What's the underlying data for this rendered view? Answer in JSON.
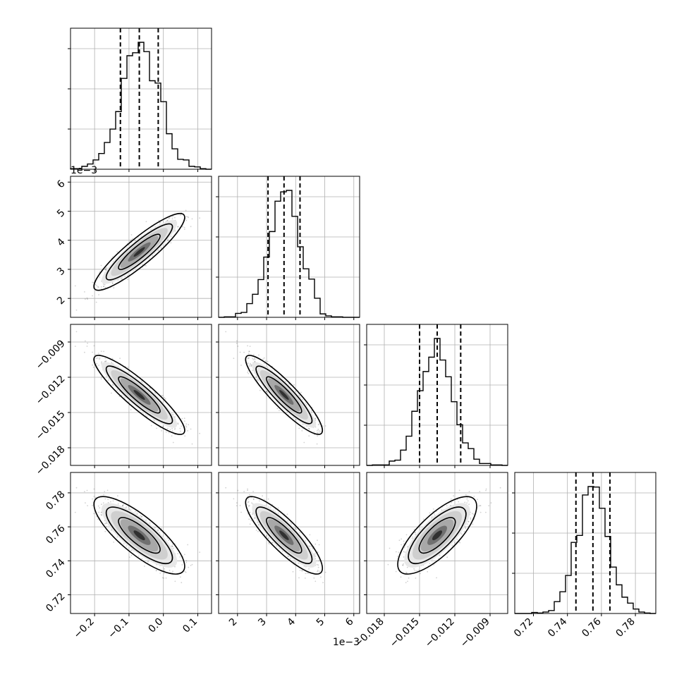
{
  "chart_data": {
    "type": "corner",
    "parameters": [
      {
        "range": [
          -0.27,
          0.14
        ],
        "ticks": [
          "−0.2",
          "−0.1",
          "0.0",
          "0.1"
        ],
        "tick_values": [
          -0.2,
          -0.1,
          0.0,
          0.1
        ],
        "mean": -0.07,
        "sigma": 0.055,
        "quantiles": [
          -0.125,
          -0.07,
          -0.015
        ],
        "offset_label": ""
      },
      {
        "range": [
          1.35,
          6.2
        ],
        "ticks": [
          "2",
          "3",
          "4",
          "5",
          "6"
        ],
        "tick_values": [
          2,
          3,
          4,
          5,
          6
        ],
        "mean": 3.6,
        "sigma": 0.55,
        "quantiles": [
          3.05,
          3.6,
          4.15
        ],
        "offset_label": "1e−3"
      },
      {
        "range": [
          -0.0195,
          -0.0075
        ],
        "ticks": [
          "−0.018",
          "−0.015",
          "−0.012",
          "−0.009"
        ],
        "tick_values": [
          -0.018,
          -0.015,
          -0.012,
          -0.009
        ],
        "mean": -0.0135,
        "sigma": 0.0014,
        "quantiles": [
          -0.015,
          -0.0135,
          -0.0115
        ],
        "offset_label": ""
      },
      {
        "range": [
          0.709,
          0.792
        ],
        "ticks": [
          "0.72",
          "0.74",
          "0.76",
          "0.78"
        ],
        "tick_values": [
          0.72,
          0.74,
          0.76,
          0.78
        ],
        "mean": 0.755,
        "sigma": 0.0095,
        "quantiles": [
          0.745,
          0.755,
          0.765
        ],
        "offset_label": ""
      }
    ],
    "correlations": [
      [
        1,
        0.9,
        -0.9,
        -0.8
      ],
      [
        0.9,
        1,
        -0.9,
        -0.85
      ],
      [
        -0.9,
        -0.9,
        1,
        0.75
      ],
      [
        -0.8,
        -0.85,
        0.75,
        1
      ]
    ],
    "y_offset_label": "1e−3",
    "grid": true
  }
}
